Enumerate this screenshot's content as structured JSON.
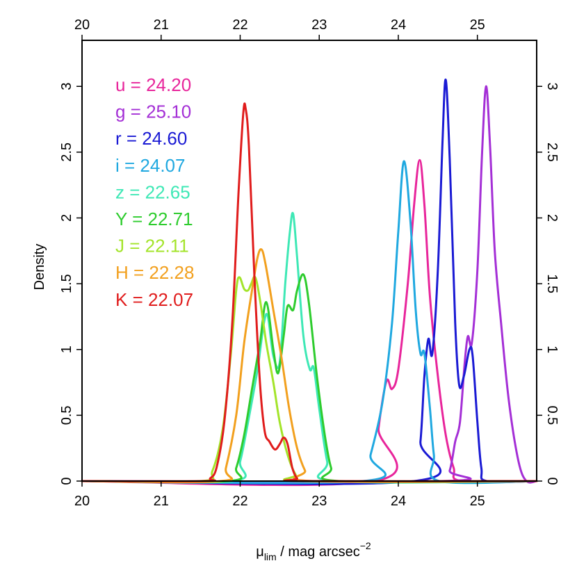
{
  "chart_data": {
    "type": "line",
    "title": "",
    "xlabel": {
      "main": "μ",
      "sub": "lim",
      "rest": " / mag arcsec",
      "sup": "−2"
    },
    "ylabel": "Density",
    "xlim": [
      20,
      25.75
    ],
    "ylim": [
      0,
      3.35
    ],
    "x_ticks": [
      "20",
      "21",
      "22",
      "23",
      "24",
      "25"
    ],
    "top_x_ticks": [
      "20",
      "21",
      "22",
      "23",
      "24",
      "25"
    ],
    "y_ticks": [
      "0",
      "0.5",
      "1",
      "1.5",
      "2",
      "2.5",
      "3"
    ],
    "series": [
      {
        "name": "u",
        "legend": "u = 24.20",
        "color": "#e8259b",
        "points": [
          [
            20,
            0
          ],
          [
            23.7,
            0
          ],
          [
            23.75,
            0.4
          ],
          [
            23.85,
            0.76
          ],
          [
            23.92,
            0.7
          ],
          [
            24.0,
            0.85
          ],
          [
            24.12,
            1.5
          ],
          [
            24.2,
            2.1
          ],
          [
            24.27,
            2.44
          ],
          [
            24.33,
            2.1
          ],
          [
            24.4,
            1.4
          ],
          [
            24.5,
            0.8
          ],
          [
            24.6,
            0.35
          ],
          [
            24.7,
            0.1
          ],
          [
            24.8,
            0
          ],
          [
            25.75,
            0
          ]
        ]
      },
      {
        "name": "g",
        "legend": "g = 25.10",
        "color": "#a42fd6",
        "points": [
          [
            20,
            0
          ],
          [
            24.55,
            0
          ],
          [
            24.65,
            0.08
          ],
          [
            24.72,
            0.3
          ],
          [
            24.78,
            0.45
          ],
          [
            24.84,
            0.9
          ],
          [
            24.88,
            1.1
          ],
          [
            24.93,
            1.05
          ],
          [
            25.0,
            1.6
          ],
          [
            25.06,
            2.5
          ],
          [
            25.11,
            3.0
          ],
          [
            25.16,
            2.55
          ],
          [
            25.22,
            1.75
          ],
          [
            25.3,
            1.2
          ],
          [
            25.4,
            0.6
          ],
          [
            25.52,
            0.15
          ],
          [
            25.62,
            0
          ],
          [
            25.75,
            0
          ]
        ]
      },
      {
        "name": "r",
        "legend": "r = 24.60",
        "color": "#1a1ad4",
        "points": [
          [
            20,
            0
          ],
          [
            24.2,
            0
          ],
          [
            24.28,
            0.3
          ],
          [
            24.33,
            0.8
          ],
          [
            24.38,
            1.08
          ],
          [
            24.43,
            0.97
          ],
          [
            24.5,
            1.6
          ],
          [
            24.56,
            2.6
          ],
          [
            24.6,
            3.05
          ],
          [
            24.65,
            2.45
          ],
          [
            24.72,
            1.2
          ],
          [
            24.77,
            0.73
          ],
          [
            24.83,
            0.8
          ],
          [
            24.9,
            1.0
          ],
          [
            24.94,
            0.95
          ],
          [
            25.0,
            0.45
          ],
          [
            25.05,
            0.1
          ],
          [
            25.12,
            0
          ],
          [
            25.75,
            0
          ]
        ]
      },
      {
        "name": "i",
        "legend": "i = 24.07",
        "color": "#1fa8e0",
        "points": [
          [
            20,
            0
          ],
          [
            23.55,
            0
          ],
          [
            23.65,
            0.2
          ],
          [
            23.8,
            0.6
          ],
          [
            23.92,
            1.2
          ],
          [
            24.0,
            1.9
          ],
          [
            24.07,
            2.43
          ],
          [
            24.15,
            2.0
          ],
          [
            24.22,
            1.3
          ],
          [
            24.28,
            0.97
          ],
          [
            24.33,
            0.97
          ],
          [
            24.4,
            0.55
          ],
          [
            24.45,
            0.2
          ],
          [
            24.52,
            0
          ],
          [
            25.75,
            0
          ]
        ]
      },
      {
        "name": "z",
        "legend": "z = 22.65",
        "color": "#3ee8b5",
        "points": [
          [
            20,
            0
          ],
          [
            21.9,
            0
          ],
          [
            22.0,
            0.15
          ],
          [
            22.1,
            0.45
          ],
          [
            22.22,
            0.85
          ],
          [
            22.3,
            1.2
          ],
          [
            22.35,
            1.25
          ],
          [
            22.42,
            0.95
          ],
          [
            22.5,
            0.9
          ],
          [
            22.57,
            1.5
          ],
          [
            22.63,
            1.9
          ],
          [
            22.67,
            2.03
          ],
          [
            22.72,
            1.7
          ],
          [
            22.8,
            1.1
          ],
          [
            22.88,
            0.85
          ],
          [
            22.93,
            0.86
          ],
          [
            23.0,
            0.55
          ],
          [
            23.1,
            0.15
          ],
          [
            23.2,
            0
          ],
          [
            25.75,
            0
          ]
        ]
      },
      {
        "name": "Y",
        "legend": "Y = 22.71",
        "color": "#2ecc2e",
        "points": [
          [
            20,
            0
          ],
          [
            21.85,
            0
          ],
          [
            21.95,
            0.1
          ],
          [
            22.05,
            0.35
          ],
          [
            22.15,
            0.7
          ],
          [
            22.25,
            1.05
          ],
          [
            22.33,
            1.36
          ],
          [
            22.42,
            1.0
          ],
          [
            22.48,
            0.82
          ],
          [
            22.55,
            1.1
          ],
          [
            22.6,
            1.33
          ],
          [
            22.67,
            1.3
          ],
          [
            22.72,
            1.45
          ],
          [
            22.8,
            1.57
          ],
          [
            22.87,
            1.35
          ],
          [
            22.97,
            0.8
          ],
          [
            23.07,
            0.35
          ],
          [
            23.15,
            0.1
          ],
          [
            23.25,
            0
          ],
          [
            25.75,
            0
          ]
        ]
      },
      {
        "name": "J",
        "legend": "J = 22.11",
        "color": "#a3e42a",
        "points": [
          [
            20,
            0
          ],
          [
            21.5,
            0
          ],
          [
            21.65,
            0.08
          ],
          [
            21.78,
            0.4
          ],
          [
            21.88,
            0.95
          ],
          [
            21.95,
            1.45
          ],
          [
            21.99,
            1.55
          ],
          [
            22.05,
            1.46
          ],
          [
            22.1,
            1.45
          ],
          [
            22.14,
            1.5
          ],
          [
            22.19,
            1.55
          ],
          [
            22.25,
            1.38
          ],
          [
            22.33,
            1.05
          ],
          [
            22.42,
            0.75
          ],
          [
            22.5,
            0.45
          ],
          [
            22.6,
            0.2
          ],
          [
            22.7,
            0.05
          ],
          [
            22.8,
            0
          ],
          [
            25.75,
            0
          ]
        ]
      },
      {
        "name": "H",
        "legend": "H = 22.28",
        "color": "#f2a01e",
        "points": [
          [
            20,
            0
          ],
          [
            21.75,
            0
          ],
          [
            21.82,
            0.1
          ],
          [
            21.95,
            0.5
          ],
          [
            22.05,
            1.05
          ],
          [
            22.15,
            1.45
          ],
          [
            22.22,
            1.7
          ],
          [
            22.27,
            1.76
          ],
          [
            22.32,
            1.65
          ],
          [
            22.42,
            1.3
          ],
          [
            22.52,
            0.95
          ],
          [
            22.62,
            0.55
          ],
          [
            22.72,
            0.25
          ],
          [
            22.82,
            0.08
          ],
          [
            22.92,
            0
          ],
          [
            25.75,
            0
          ]
        ]
      },
      {
        "name": "K",
        "legend": "K = 22.07",
        "color": "#e01c1c",
        "points": [
          [
            20,
            0
          ],
          [
            21.55,
            0
          ],
          [
            21.62,
            0.02
          ],
          [
            21.7,
            0.1
          ],
          [
            21.8,
            0.45
          ],
          [
            21.9,
            1.2
          ],
          [
            21.98,
            2.2
          ],
          [
            22.04,
            2.8
          ],
          [
            22.07,
            2.83
          ],
          [
            22.11,
            2.55
          ],
          [
            22.18,
            1.55
          ],
          [
            22.25,
            0.75
          ],
          [
            22.31,
            0.38
          ],
          [
            22.37,
            0.3
          ],
          [
            22.44,
            0.24
          ],
          [
            22.5,
            0.28
          ],
          [
            22.55,
            0.33
          ],
          [
            22.6,
            0.28
          ],
          [
            22.66,
            0.1
          ],
          [
            22.72,
            0.02
          ],
          [
            22.8,
            0
          ],
          [
            25.75,
            0
          ]
        ]
      }
    ]
  }
}
